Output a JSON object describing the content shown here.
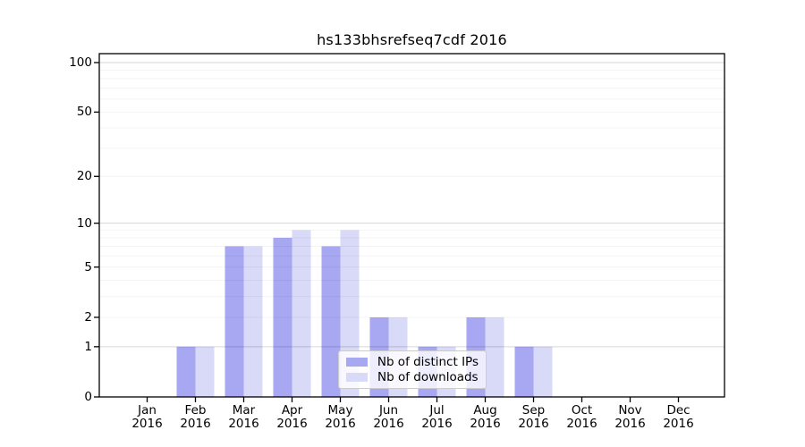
{
  "chart_data": {
    "type": "bar",
    "title": "hs133bhsrefseq7cdf 2016",
    "categories": [
      "Jan 2016",
      "Feb 2016",
      "Mar 2016",
      "Apr 2016",
      "May 2016",
      "Jun 2016",
      "Jul 2016",
      "Aug 2016",
      "Sep 2016",
      "Oct 2016",
      "Nov 2016",
      "Dec 2016"
    ],
    "series": [
      {
        "name": "Nb of distinct IPs",
        "color": "#a7a7f2",
        "values": [
          0,
          1,
          7,
          8,
          7,
          2,
          1,
          2,
          1,
          0,
          0,
          0
        ]
      },
      {
        "name": "Nb of downloads",
        "color": "#d9d9f8",
        "values": [
          0,
          1,
          7,
          9,
          9,
          2,
          1,
          2,
          1,
          0,
          0,
          0
        ]
      }
    ],
    "yscale": "log1p",
    "ylim": [
      0,
      114
    ],
    "yticks": [
      0,
      1,
      2,
      5,
      10,
      20,
      50,
      100
    ],
    "ytick_labels": [
      "0",
      "1",
      "2",
      "5",
      "10",
      "20",
      "50",
      "100"
    ],
    "grid": "horizontal",
    "legend_position": "lower-center"
  }
}
